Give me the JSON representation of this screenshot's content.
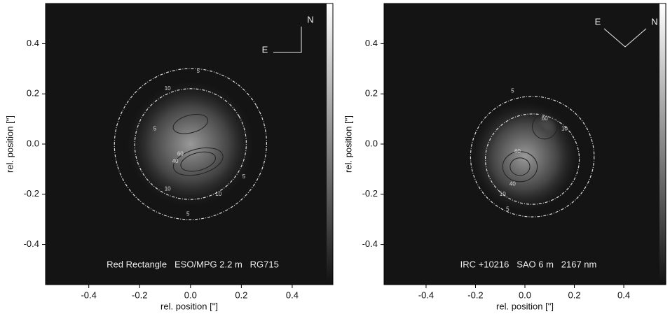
{
  "chart_data": [
    {
      "type": "contour",
      "annotation": "Red Rectangle   ESO/MPG 2.2 m   RG715",
      "xlabel": "rel. position [\"]",
      "ylabel": "rel. position [\"]",
      "xlim": [
        -0.57,
        0.56
      ],
      "ylim": [
        -0.56,
        0.56
      ],
      "xticks": [
        -0.4,
        -0.2,
        {
          "value": 0,
          "label": "0.0"
        },
        0.2,
        0.4
      ],
      "yticks": [
        -0.4,
        -0.2,
        {
          "value": 0,
          "label": "0.0"
        },
        0.2,
        0.4
      ],
      "compass": {
        "east": "E",
        "north": "N"
      },
      "contour_labels": [
        5,
        10,
        5,
        60,
        40,
        10,
        5,
        10,
        5
      ]
    },
    {
      "type": "contour",
      "annotation": "IRC +10216   SAO 6 m   2167 nm",
      "xlabel": "rel. position [\"]",
      "ylabel": "rel. position [\"]",
      "xlim": [
        -0.57,
        0.57
      ],
      "ylim": [
        -0.56,
        0.56
      ],
      "xticks": [
        -0.4,
        -0.2,
        {
          "value": 0,
          "label": "0.0"
        },
        0.2,
        0.4
      ],
      "yticks": [
        -0.4,
        -0.2,
        {
          "value": 0,
          "label": "0.0"
        },
        0.2,
        0.4
      ],
      "compass": {
        "east": "E",
        "north": "N"
      },
      "contour_labels": [
        5,
        10,
        60,
        40,
        10,
        5,
        60
      ]
    }
  ]
}
